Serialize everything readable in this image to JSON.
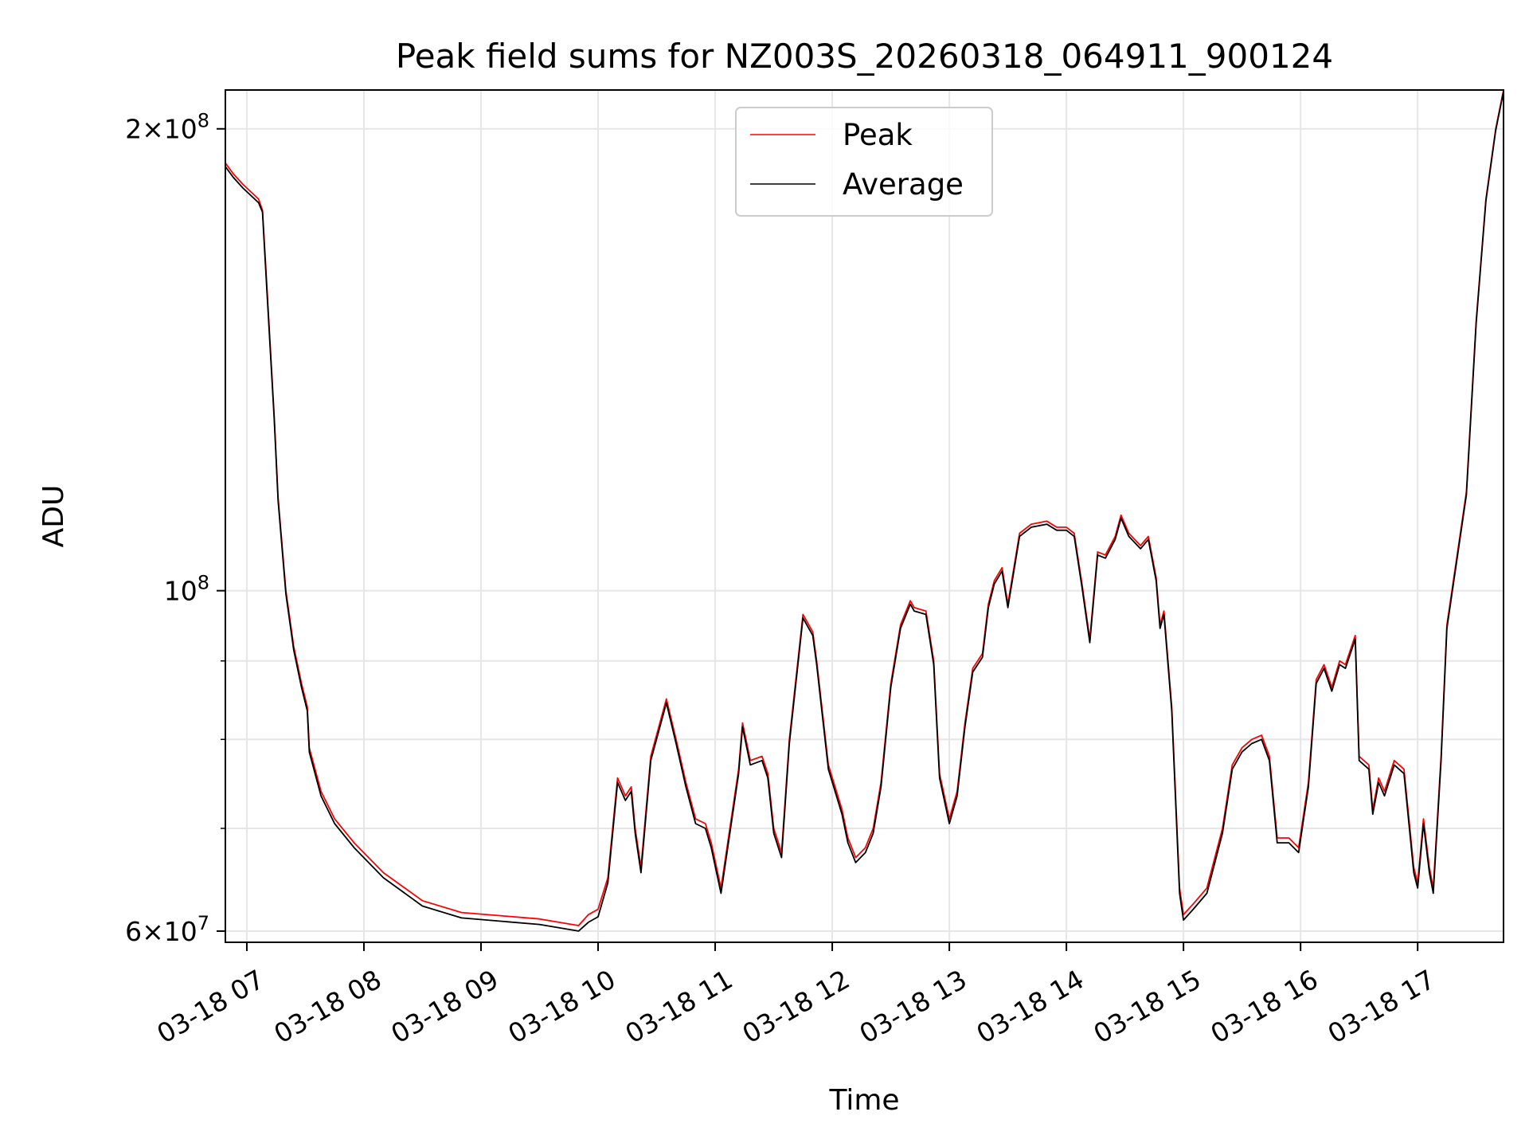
{
  "chart_data": {
    "type": "line",
    "title": "Peak field sums for NZ003S_20260318_064911_900124",
    "xlabel": "Time",
    "ylabel": "ADU",
    "xlim": [
      "2026-03-18 06:49",
      "2026-03-18 17:44"
    ],
    "ylim": [
      59000000,
      212000000
    ],
    "yscale": "log",
    "grid": true,
    "legend_position": "upper center",
    "x_tick_labels": [
      "03-18 07",
      "03-18 08",
      "03-18 09",
      "03-18 10",
      "03-18 11",
      "03-18 12",
      "03-18 13",
      "03-18 14",
      "03-18 15",
      "03-18 16",
      "03-18 17"
    ],
    "x_ticks": [
      "2026-03-18 07:00",
      "2026-03-18 08:00",
      "2026-03-18 09:00",
      "2026-03-18 10:00",
      "2026-03-18 11:00",
      "2026-03-18 12:00",
      "2026-03-18 13:00",
      "2026-03-18 14:00",
      "2026-03-18 15:00",
      "2026-03-18 16:00",
      "2026-03-18 17:00"
    ],
    "y_ticks_major": [
      {
        "value": 60000000,
        "mantissa": "6",
        "exponent": "7"
      },
      {
        "value": 100000000,
        "mantissa": "",
        "exponent": "8"
      },
      {
        "value": 200000000,
        "mantissa": "2",
        "exponent": "8"
      }
    ],
    "y_ticks_minor": [
      70000000,
      80000000,
      90000000
    ],
    "series": [
      {
        "name": "Peak",
        "color": "#ff0000",
        "x": [
          "2026-03-18 06:49",
          "2026-03-18 06:53",
          "2026-03-18 06:58",
          "2026-03-18 07:06",
          "2026-03-18 07:08",
          "2026-03-18 07:10",
          "2026-03-18 07:14",
          "2026-03-18 07:16",
          "2026-03-18 07:20",
          "2026-03-18 07:24",
          "2026-03-18 07:28",
          "2026-03-18 07:31",
          "2026-03-18 07:32",
          "2026-03-18 07:38",
          "2026-03-18 07:45",
          "2026-03-18 07:55",
          "2026-03-18 08:10",
          "2026-03-18 08:30",
          "2026-03-18 08:50",
          "2026-03-18 09:10",
          "2026-03-18 09:30",
          "2026-03-18 09:50",
          "2026-03-18 09:55",
          "2026-03-18 10:00",
          "2026-03-18 10:05",
          "2026-03-18 10:10",
          "2026-03-18 10:14",
          "2026-03-18 10:17",
          "2026-03-18 10:19",
          "2026-03-18 10:22",
          "2026-03-18 10:27",
          "2026-03-18 10:35",
          "2026-03-18 10:40",
          "2026-03-18 10:45",
          "2026-03-18 10:50",
          "2026-03-18 10:55",
          "2026-03-18 10:58",
          "2026-03-18 11:03",
          "2026-03-18 11:12",
          "2026-03-18 11:14",
          "2026-03-18 11:18",
          "2026-03-18 11:24",
          "2026-03-18 11:27",
          "2026-03-18 11:30",
          "2026-03-18 11:34",
          "2026-03-18 11:38",
          "2026-03-18 11:45",
          "2026-03-18 11:50",
          "2026-03-18 11:52",
          "2026-03-18 11:58",
          "2026-03-18 12:05",
          "2026-03-18 12:08",
          "2026-03-18 12:12",
          "2026-03-18 12:17",
          "2026-03-18 12:21",
          "2026-03-18 12:25",
          "2026-03-18 12:30",
          "2026-03-18 12:35",
          "2026-03-18 12:40",
          "2026-03-18 12:42",
          "2026-03-18 12:48",
          "2026-03-18 12:52",
          "2026-03-18 12:55",
          "2026-03-18 13:00",
          "2026-03-18 13:04",
          "2026-03-18 13:08",
          "2026-03-18 13:12",
          "2026-03-18 13:17",
          "2026-03-18 13:20",
          "2026-03-18 13:23",
          "2026-03-18 13:27",
          "2026-03-18 13:30",
          "2026-03-18 13:36",
          "2026-03-18 13:42",
          "2026-03-18 13:50",
          "2026-03-18 13:55",
          "2026-03-18 14:00",
          "2026-03-18 14:04",
          "2026-03-18 14:08",
          "2026-03-18 14:12",
          "2026-03-18 14:16",
          "2026-03-18 14:20",
          "2026-03-18 14:25",
          "2026-03-18 14:28",
          "2026-03-18 14:32",
          "2026-03-18 14:38",
          "2026-03-18 14:42",
          "2026-03-18 14:46",
          "2026-03-18 14:48",
          "2026-03-18 14:50",
          "2026-03-18 14:54",
          "2026-03-18 14:58",
          "2026-03-18 15:00",
          "2026-03-18 15:05",
          "2026-03-18 15:12",
          "2026-03-18 15:20",
          "2026-03-18 15:25",
          "2026-03-18 15:30",
          "2026-03-18 15:35",
          "2026-03-18 15:40",
          "2026-03-18 15:44",
          "2026-03-18 15:48",
          "2026-03-18 15:54",
          "2026-03-18 15:59",
          "2026-03-18 16:04",
          "2026-03-18 16:08",
          "2026-03-18 16:12",
          "2026-03-18 16:16",
          "2026-03-18 16:20",
          "2026-03-18 16:23",
          "2026-03-18 16:28",
          "2026-03-18 16:30",
          "2026-03-18 16:35",
          "2026-03-18 16:37",
          "2026-03-18 16:40",
          "2026-03-18 16:43",
          "2026-03-18 16:48",
          "2026-03-18 16:53",
          "2026-03-18 16:58",
          "2026-03-18 17:00",
          "2026-03-18 17:03",
          "2026-03-18 17:06",
          "2026-03-18 17:08",
          "2026-03-18 17:12",
          "2026-03-18 17:15",
          "2026-03-18 17:20",
          "2026-03-18 17:25",
          "2026-03-18 17:30",
          "2026-03-18 17:35",
          "2026-03-18 17:40",
          "2026-03-18 17:44"
        ],
        "y": [
          190000000,
          187000000,
          184000000,
          180000000,
          177000000,
          160000000,
          130000000,
          115000000,
          100000000,
          92000000,
          87000000,
          84000000,
          79000000,
          74000000,
          71000000,
          68500000,
          65500000,
          62800000,
          61700000,
          61400000,
          61100000,
          60500000,
          61500000,
          62000000,
          65000000,
          75500000,
          73500000,
          74500000,
          70000000,
          66000000,
          78000000,
          85000000,
          80000000,
          75000000,
          71000000,
          70500000,
          68500000,
          64000000,
          76500000,
          82000000,
          77500000,
          78000000,
          76000000,
          70000000,
          67500000,
          80000000,
          96500000,
          94000000,
          90000000,
          77000000,
          72000000,
          69000000,
          67000000,
          68000000,
          70000000,
          75000000,
          87000000,
          95000000,
          98500000,
          97500000,
          97000000,
          90000000,
          76000000,
          71000000,
          74000000,
          82000000,
          89000000,
          91000000,
          98000000,
          101500000,
          103500000,
          98000000,
          109000000,
          110500000,
          111000000,
          110000000,
          110000000,
          109000000,
          101000000,
          93000000,
          106000000,
          105500000,
          108500000,
          112000000,
          109000000,
          107000000,
          108500000,
          102000000,
          95000000,
          97000000,
          84000000,
          64000000,
          61500000,
          62500000,
          64000000,
          70000000,
          77000000,
          79000000,
          80000000,
          80500000,
          78000000,
          69000000,
          69000000,
          68000000,
          75000000,
          87500000,
          89500000,
          86500000,
          90000000,
          89500000,
          93500000,
          78000000,
          77000000,
          72000000,
          75500000,
          74000000,
          77500000,
          76500000,
          66000000,
          64500000,
          71000000,
          66000000,
          64000000,
          78000000,
          95000000,
          105000000,
          116000000,
          150000000,
          180000000,
          200000000,
          212000000
        ]
      },
      {
        "name": "Average",
        "color": "#000000",
        "x": [
          "2026-03-18 06:49",
          "2026-03-18 06:53",
          "2026-03-18 06:58",
          "2026-03-18 07:06",
          "2026-03-18 07:08",
          "2026-03-18 07:10",
          "2026-03-18 07:14",
          "2026-03-18 07:16",
          "2026-03-18 07:20",
          "2026-03-18 07:24",
          "2026-03-18 07:28",
          "2026-03-18 07:31",
          "2026-03-18 07:32",
          "2026-03-18 07:38",
          "2026-03-18 07:45",
          "2026-03-18 07:55",
          "2026-03-18 08:10",
          "2026-03-18 08:30",
          "2026-03-18 08:50",
          "2026-03-18 09:10",
          "2026-03-18 09:30",
          "2026-03-18 09:50",
          "2026-03-18 09:55",
          "2026-03-18 10:00",
          "2026-03-18 10:05",
          "2026-03-18 10:10",
          "2026-03-18 10:14",
          "2026-03-18 10:17",
          "2026-03-18 10:19",
          "2026-03-18 10:22",
          "2026-03-18 10:27",
          "2026-03-18 10:35",
          "2026-03-18 10:40",
          "2026-03-18 10:45",
          "2026-03-18 10:50",
          "2026-03-18 10:55",
          "2026-03-18 10:58",
          "2026-03-18 11:03",
          "2026-03-18 11:12",
          "2026-03-18 11:14",
          "2026-03-18 11:18",
          "2026-03-18 11:24",
          "2026-03-18 11:27",
          "2026-03-18 11:30",
          "2026-03-18 11:34",
          "2026-03-18 11:38",
          "2026-03-18 11:45",
          "2026-03-18 11:50",
          "2026-03-18 11:52",
          "2026-03-18 11:58",
          "2026-03-18 12:05",
          "2026-03-18 12:08",
          "2026-03-18 12:12",
          "2026-03-18 12:17",
          "2026-03-18 12:21",
          "2026-03-18 12:25",
          "2026-03-18 12:30",
          "2026-03-18 12:35",
          "2026-03-18 12:40",
          "2026-03-18 12:42",
          "2026-03-18 12:48",
          "2026-03-18 12:52",
          "2026-03-18 12:55",
          "2026-03-18 13:00",
          "2026-03-18 13:04",
          "2026-03-18 13:08",
          "2026-03-18 13:12",
          "2026-03-18 13:17",
          "2026-03-18 13:20",
          "2026-03-18 13:23",
          "2026-03-18 13:27",
          "2026-03-18 13:30",
          "2026-03-18 13:36",
          "2026-03-18 13:42",
          "2026-03-18 13:50",
          "2026-03-18 13:55",
          "2026-03-18 14:00",
          "2026-03-18 14:04",
          "2026-03-18 14:08",
          "2026-03-18 14:12",
          "2026-03-18 14:16",
          "2026-03-18 14:20",
          "2026-03-18 14:25",
          "2026-03-18 14:28",
          "2026-03-18 14:32",
          "2026-03-18 14:38",
          "2026-03-18 14:42",
          "2026-03-18 14:46",
          "2026-03-18 14:48",
          "2026-03-18 14:50",
          "2026-03-18 14:54",
          "2026-03-18 14:58",
          "2026-03-18 15:00",
          "2026-03-18 15:05",
          "2026-03-18 15:12",
          "2026-03-18 15:20",
          "2026-03-18 15:25",
          "2026-03-18 15:30",
          "2026-03-18 15:35",
          "2026-03-18 15:40",
          "2026-03-18 15:44",
          "2026-03-18 15:48",
          "2026-03-18 15:54",
          "2026-03-18 15:59",
          "2026-03-18 16:04",
          "2026-03-18 16:08",
          "2026-03-18 16:12",
          "2026-03-18 16:16",
          "2026-03-18 16:20",
          "2026-03-18 16:23",
          "2026-03-18 16:28",
          "2026-03-18 16:30",
          "2026-03-18 16:35",
          "2026-03-18 16:37",
          "2026-03-18 16:40",
          "2026-03-18 16:43",
          "2026-03-18 16:48",
          "2026-03-18 16:53",
          "2026-03-18 16:58",
          "2026-03-18 17:00",
          "2026-03-18 17:03",
          "2026-03-18 17:06",
          "2026-03-18 17:08",
          "2026-03-18 17:12",
          "2026-03-18 17:15",
          "2026-03-18 17:20",
          "2026-03-18 17:25",
          "2026-03-18 17:30",
          "2026-03-18 17:35",
          "2026-03-18 17:40",
          "2026-03-18 17:44"
        ],
        "y": [
          189000000,
          186000000,
          183000000,
          179000000,
          176500000,
          159000000,
          129500000,
          114500000,
          99500000,
          91500000,
          86500000,
          83500000,
          78500000,
          73500000,
          70500000,
          68000000,
          65000000,
          62300000,
          61200000,
          60900000,
          60600000,
          60000000,
          60800000,
          61300000,
          64500000,
          75000000,
          73000000,
          74000000,
          69500000,
          65500000,
          77500000,
          84500000,
          79500000,
          74500000,
          70500000,
          70000000,
          68000000,
          63500000,
          76000000,
          81500000,
          77000000,
          77500000,
          75500000,
          69500000,
          67000000,
          79500000,
          96000000,
          93500000,
          89500000,
          76500000,
          71500000,
          68500000,
          66500000,
          67500000,
          69500000,
          74500000,
          86500000,
          94500000,
          98000000,
          97000000,
          96500000,
          89500000,
          75500000,
          70500000,
          73500000,
          81500000,
          88500000,
          90500000,
          97500000,
          101000000,
          103000000,
          97500000,
          108500000,
          110000000,
          110500000,
          109500000,
          109500000,
          108500000,
          100500000,
          92500000,
          105500000,
          105000000,
          108000000,
          111500000,
          108500000,
          106500000,
          108000000,
          101500000,
          94500000,
          96500000,
          83500000,
          63500000,
          61000000,
          62000000,
          63500000,
          69500000,
          76500000,
          78500000,
          79500000,
          80000000,
          77500000,
          68500000,
          68500000,
          67500000,
          74500000,
          87000000,
          89000000,
          86000000,
          89500000,
          89000000,
          93000000,
          77500000,
          76500000,
          71500000,
          75000000,
          73500000,
          77000000,
          76000000,
          65500000,
          64000000,
          70500000,
          65500000,
          63500000,
          77500000,
          94500000,
          104500000,
          115500000,
          149500000,
          179500000,
          199500000,
          211500000
        ]
      }
    ]
  }
}
